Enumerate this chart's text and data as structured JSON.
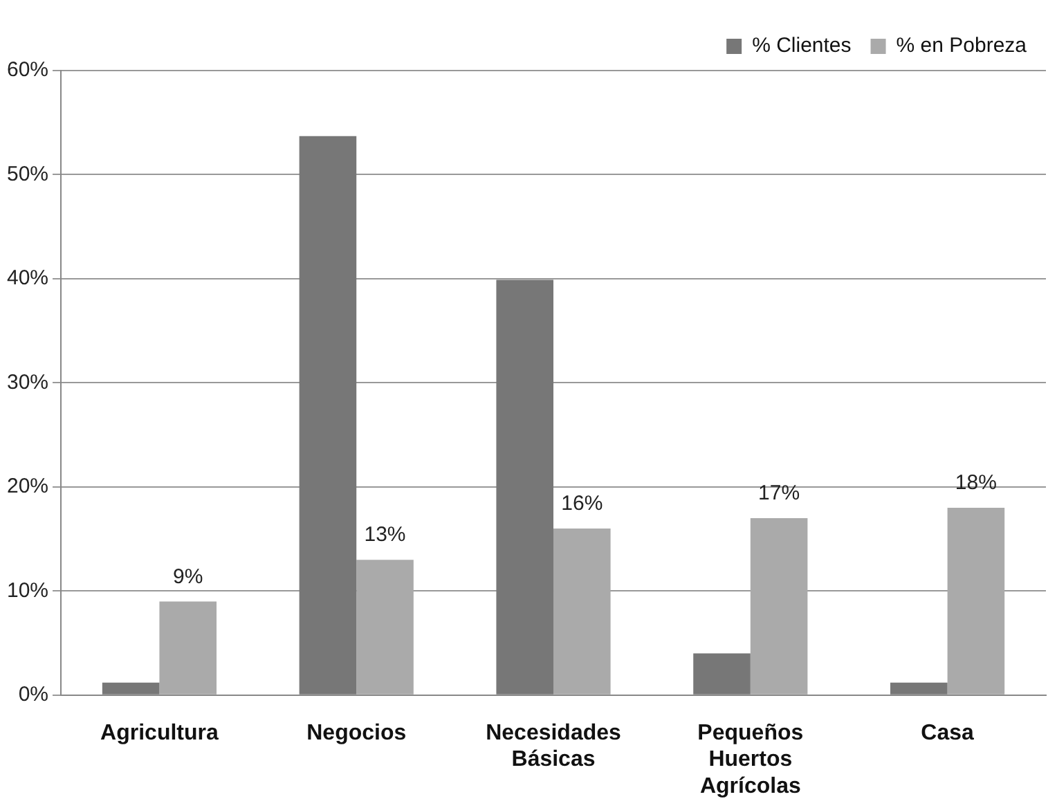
{
  "chart_data": {
    "type": "bar",
    "categories": [
      "Agricultura",
      "Negocios",
      "Necesidades Básicas",
      "Pequeños Huertos Agrícolas",
      "Casa"
    ],
    "series": [
      {
        "name": "% Clientes",
        "color": "#777777",
        "values": [
          1.2,
          53.7,
          39.9,
          4,
          1.2
        ]
      },
      {
        "name": "% en Pobreza",
        "color": "#aaaaaa",
        "values": [
          9,
          13,
          16,
          17,
          18
        ],
        "value_labels": [
          "9%",
          "13%",
          "16%",
          "17%",
          "18%"
        ]
      }
    ],
    "ylim": [
      0,
      60
    ],
    "yticks": [
      {
        "value": 0,
        "label": "0%"
      },
      {
        "value": 10,
        "label": "10%"
      },
      {
        "value": 20,
        "label": "20%"
      },
      {
        "value": 30,
        "label": "30%"
      },
      {
        "value": 40,
        "label": "40%"
      },
      {
        "value": 50,
        "label": "50%"
      },
      {
        "value": 60,
        "label": "60%"
      }
    ],
    "grid": "y",
    "legend": "top right"
  }
}
